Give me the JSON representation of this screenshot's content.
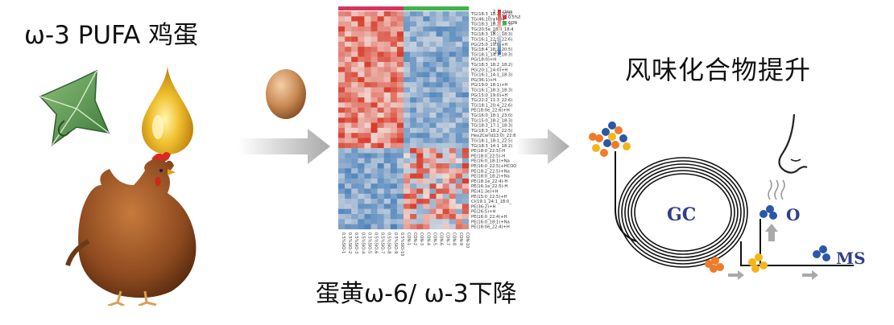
{
  "labels": {
    "left_title": "ω-3 PUFA 鸡蛋",
    "right_title": "风味化合物提升",
    "bottom_title": "蛋黄ω-6/ ω-3下降",
    "gc": "GC",
    "olfactory": "O",
    "ms": "MS"
  },
  "heatmap": {
    "legend_title": "class",
    "groups": [
      {
        "name": "0.5%SIO",
        "color": "#d6345f"
      },
      {
        "name": "CON",
        "color": "#3db34a"
      }
    ],
    "scale_ticks": [
      "2",
      "1",
      "0",
      "-1",
      "-2"
    ],
    "row_labels": [
      "TG(18:3_18:2_20:5)",
      "TG(46:10)+NH4",
      "TG(18:3_18:2_18:3)",
      "TG(20:5e_18:3_18:4",
      "TG(18:3_18:3_18:3)",
      "TG(16:1_22:5_22:6)",
      "PG(25:0_19:0)+H",
      "TG(18:4_18:2_20:5)",
      "TG(18:1_14:1_18:3)",
      "PG(18:0)+H",
      "TG(18:3_18:2_18:2)",
      "PG(20:1_14:0)+H",
      "TG(16:1_14:1_18:3)",
      "PG(36:1)+H",
      "PG(19:0_18:1)+H",
      "TG(16:1_18:3_18:3)",
      "PG(15:0_19:0)+H",
      "TG(22:2_11:3_22:6)",
      "TG(18:1_20:4_22:6)",
      "PE(18:0e_22:6)+H",
      "TG(16:0_18:1_23:0)",
      "TG(15:0_18:2_18:3)",
      "TG(18:3_17:1_18:3)",
      "TG(18:3_18:2_22:5)",
      "Hex2Cer(d13:0)_22:6",
      "TG(18:1_18:1_22:5)",
      "TG(18:3_14:1_18:2)",
      "PE(18:0_22:5)-H",
      "PE(18:0_22:5)-H",
      "PE(16:0_18:1)+Na",
      "PE(16:0_22:5)+HCOO",
      "PE(18:2_22:5)+Na",
      "PE(18:0_18:2)+Na",
      "PE(18:1e_22:4)-H",
      "PE(16:1e_22:5)-H",
      "PE(41:3e)+H",
      "PE(15:0_22:5)+H",
      "Cl(19:1_24:1_18:0_",
      "PE(36:2)+H",
      "PE(26:5)+H",
      "PE(16:0_22:4)+H",
      "PE(16:0_18:1)+Na",
      "PE(18:0e_22:4)+H"
    ],
    "col_labels": [
      "0.5%SIO-1",
      "0.5%SIO-2",
      "0.5%SIO-3",
      "0.5%SIO-4",
      "0.5%SIO-5",
      "0.5%SIO-6",
      "0.5%SIO-7",
      "0.5%SIO-8",
      "0.5%SIO-9",
      "0.5%SIO-10",
      "CON-1",
      "CON-2",
      "CON-3",
      "CON-4",
      "CON-5",
      "CON-6",
      "CON-7",
      "CON-8",
      "CON-9",
      "CON-10"
    ]
  },
  "colors": {
    "arrow": "#b5b5b5",
    "heat_high": "#d7311f",
    "heat_mid": "#f3ede9",
    "heat_low": "#3a77b6",
    "gc_text": "#2f3e8a",
    "dot_blue": "#2a57a8",
    "dot_orange": "#ee7b2a",
    "dot_yellow": "#f3b51a"
  },
  "icons": [
    "star-anise-icon",
    "oil-drop-icon",
    "egg-icon",
    "hen-icon",
    "nose-icon",
    "gc-column-icon"
  ]
}
